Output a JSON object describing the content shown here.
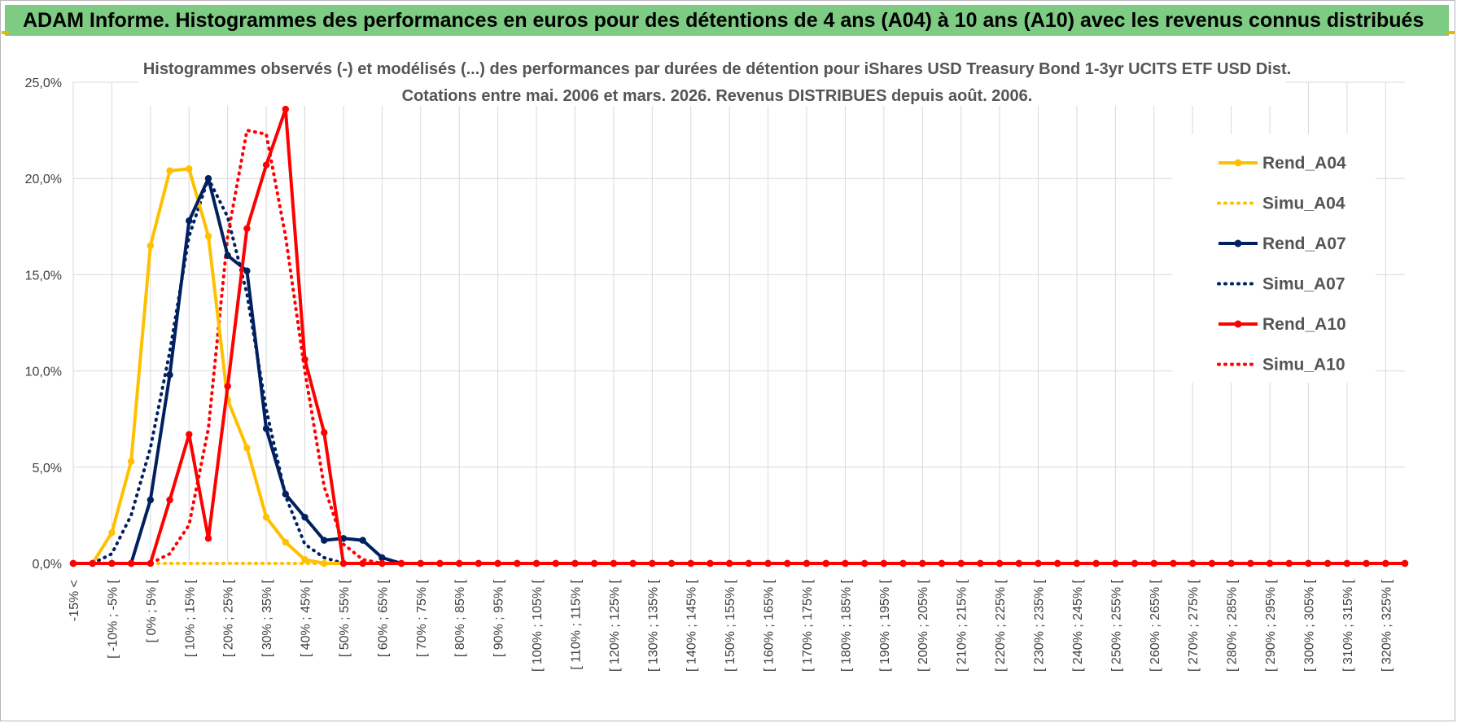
{
  "header": {
    "title": "ADAM Informe. Histogrammes des performances en euros pour des détentions de 4 ans (A04) à 10 ans (A10) avec les revenus connus distribués"
  },
  "colors": {
    "banner": "#7ecb84",
    "a04": "#FFC000",
    "a07": "#002060",
    "a10": "#FF0000",
    "grid": "#d9d9d9"
  },
  "chart_data": {
    "type": "line",
    "title_line1": "Histogrammes observés (-) et modélisés (...) des performances par durées de détention pour iShares USD Treasury Bond 1-3yr UCITS ETF USD Dist.",
    "title_line2": "Cotations entre mai. 2006 et mars. 2026. Revenus DISTRIBUES depuis août. 2006.",
    "ylim": [
      0,
      25
    ],
    "yticks": [
      "0,0%",
      "5,0%",
      "10,0%",
      "15,0%",
      "20,0%",
      "25,0%"
    ],
    "grid": true,
    "legend_position": "right",
    "x_labels": [
      "-15% <",
      "[ -10% ; -5% [",
      "[ 0% ; 5% [",
      "[ 10% ; 15% [",
      "[ 20% ; 25% [",
      "[ 30% ; 35% [",
      "[ 40% ; 45% [",
      "[ 50% ; 55% [",
      "[ 60% ; 65% [",
      "[ 70% ; 75% [",
      "[ 80% ; 85% [",
      "[ 90% ; 95% [",
      "[ 100% ; 105% [",
      "[ 110% ; 115% [",
      "[ 120% ; 125% [",
      "[ 130% ; 135% [",
      "[ 140% ; 145% [",
      "[ 150% ; 155% [",
      "[ 160% ; 165% [",
      "[ 170% ; 175% [",
      "[ 180% ; 185% [",
      "[ 190% ; 195% [",
      "[ 200% ; 205% [",
      "[ 210% ; 215% [",
      "[ 220% ; 225% [",
      "[ 230% ; 235% [",
      "[ 240% ; 245% [",
      "[ 250% ; 255% [",
      "[ 260% ; 265% [",
      "[ 270% ; 275% [",
      "[ 280% ; 285% [",
      "[ 290% ; 295% [",
      "[ 300% ; 305% [",
      "[ 310% ; 315% [",
      "[ 320% ; 325% ["
    ],
    "categories_count": 70,
    "series": [
      {
        "name": "Rend_A04",
        "style": "solid",
        "color": "#FFC000",
        "markers": true,
        "values": [
          0,
          0,
          1.6,
          5.3,
          16.5,
          20.4,
          20.5,
          17.0,
          8.5,
          6.0,
          2.4,
          1.1,
          0.2,
          0
        ]
      },
      {
        "name": "Simu_A04",
        "style": "dotted",
        "color": "#FFC000",
        "markers": false,
        "values": [
          0,
          0,
          0,
          0,
          0,
          0,
          0,
          0,
          0,
          0,
          0,
          0,
          0,
          0
        ]
      },
      {
        "name": "Rend_A07",
        "style": "solid",
        "color": "#002060",
        "markers": true,
        "values": [
          0,
          0,
          0,
          0,
          3.3,
          9.8,
          17.8,
          20.0,
          16.0,
          15.2,
          7.0,
          3.6,
          2.4,
          1.2,
          1.3,
          1.2,
          0.3,
          0
        ]
      },
      {
        "name": "Simu_A07",
        "style": "dotted",
        "color": "#002060",
        "markers": false,
        "values": [
          0,
          0,
          0.5,
          2.5,
          6.0,
          11.0,
          17.0,
          20.0,
          18.0,
          14.0,
          8.0,
          3.5,
          1.0,
          0.3,
          0
        ]
      },
      {
        "name": "Rend_A10",
        "style": "solid",
        "color": "#FF0000",
        "markers": true,
        "values": [
          0,
          0,
          0,
          0,
          0,
          3.3,
          6.7,
          1.3,
          9.2,
          17.4,
          20.7,
          23.6,
          10.6,
          6.8,
          0,
          0,
          0
        ]
      },
      {
        "name": "Simu_A10",
        "style": "dotted",
        "color": "#FF0000",
        "markers": false,
        "values": [
          0,
          0,
          0,
          0,
          0,
          0.5,
          2.0,
          7.0,
          17.0,
          22.5,
          22.3,
          17.0,
          10.0,
          4.0,
          1.0,
          0.2,
          0
        ]
      }
    ]
  }
}
